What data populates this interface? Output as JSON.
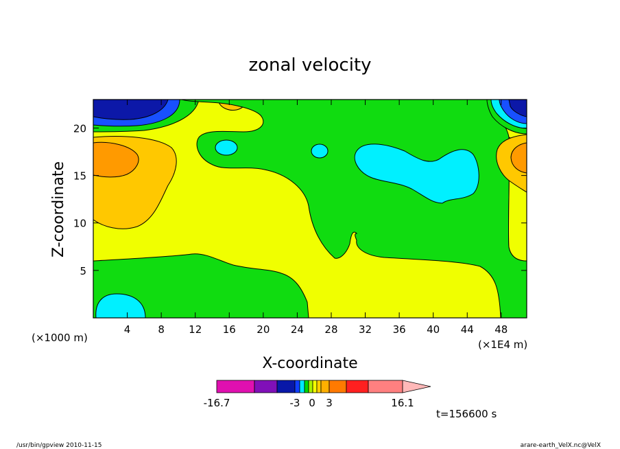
{
  "chart_data": {
    "type": "heatmap",
    "title": "zonal velocity",
    "xlabel": "X-coordinate",
    "ylabel": "Z-coordinate",
    "x_unit_left": "(×1000 m)",
    "x_unit_right": "(×1E4 m)",
    "x_ticks": [
      "4",
      "8",
      "12",
      "16",
      "20",
      "24",
      "28",
      "32",
      "36",
      "40",
      "44",
      "48"
    ],
    "y_ticks": [
      "5",
      "10",
      "15",
      "20"
    ],
    "xlim": [
      0,
      51
    ],
    "ylim": [
      0,
      23
    ],
    "colorbar": {
      "min_label": "-16.7",
      "max_label": "16.1",
      "labels": [
        "-3",
        "0",
        "3"
      ],
      "colors": [
        "#e010b0",
        "#8010b8",
        "#0818a8",
        "#1040ff",
        "#00e8ff",
        "#00d800",
        "#a8f000",
        "#f4ff00",
        "#ffd000",
        "#ffb000",
        "#ff7a00",
        "#ff2020",
        "#ff8080",
        "#ffb8b8"
      ]
    },
    "time_label": "t=156600 s",
    "field_colors": {
      "dark_blue": "#0c18a8",
      "blue": "#1850ff",
      "cyan": "#00f0ff",
      "green": "#10dc10",
      "yellow": "#f0ff00",
      "light_orange": "#ffc800",
      "orange": "#ff9a00"
    }
  },
  "footer": {
    "left": "/usr/bin/gpview   2010-11-15",
    "right": "arare-earth_VelX.nc@VelX"
  }
}
